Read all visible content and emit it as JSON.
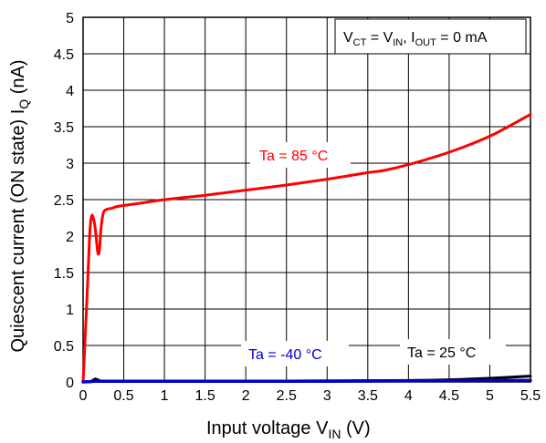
{
  "chart_data": {
    "type": "line",
    "xlabel": {
      "main": "Input voltage V",
      "sub": "IN",
      "unit": " (V)"
    },
    "ylabel": {
      "main": "Quiescent current (ON state) I",
      "sub": "Q",
      "unit": " (nA)"
    },
    "xlim": [
      0,
      5.5
    ],
    "ylim": [
      0,
      5
    ],
    "x_ticks": [
      "0",
      "0.5",
      "1",
      "1.5",
      "2",
      "2.5",
      "3",
      "3.5",
      "4",
      "4.5",
      "5",
      "5.5"
    ],
    "y_ticks": [
      "0",
      "0.5",
      "1",
      "1.5",
      "2",
      "2.5",
      "3",
      "3.5",
      "4",
      "4.5",
      "5"
    ],
    "grid": true,
    "condition": {
      "v1": "V",
      "v1_sub": "CT",
      "eq1": " = V",
      "v2_sub": "IN",
      "sep": ", I",
      "i_sub": "OUT",
      "rest": " = 0 mA"
    },
    "series": [
      {
        "name": "Ta = 85 °C",
        "color": "#ff0000",
        "x": [
          0,
          0.05,
          0.08,
          0.1,
          0.12,
          0.15,
          0.18,
          0.2,
          0.22,
          0.25,
          0.3,
          0.35,
          0.4,
          0.5,
          0.7,
          1.0,
          1.5,
          2.0,
          2.5,
          3.0,
          3.5,
          3.7,
          4.0,
          4.5,
          5.0,
          5.5
        ],
        "y": [
          0,
          1.2,
          2.0,
          2.25,
          2.27,
          2.1,
          1.78,
          1.8,
          2.1,
          2.32,
          2.37,
          2.38,
          2.4,
          2.42,
          2.45,
          2.5,
          2.56,
          2.63,
          2.7,
          2.78,
          2.87,
          2.9,
          2.98,
          3.15,
          3.37,
          3.67
        ]
      },
      {
        "name": "Ta = 25 °C",
        "color": "#000000",
        "x": [
          0,
          0.1,
          0.15,
          0.2,
          0.3,
          1.0,
          2.0,
          3.0,
          4.0,
          4.5,
          5.0,
          5.5
        ],
        "y": [
          0,
          0.01,
          0.04,
          0.02,
          0.01,
          0.01,
          0.01,
          0.015,
          0.02,
          0.03,
          0.05,
          0.08
        ]
      },
      {
        "name": "Ta = -40 °C",
        "color": "#0000cc",
        "x": [
          0,
          0.1,
          0.2,
          1.0,
          2.0,
          3.0,
          4.0,
          5.0,
          5.5
        ],
        "y": [
          0,
          0.005,
          0.01,
          0.01,
          0.01,
          0.01,
          0.015,
          0.02,
          0.02
        ]
      }
    ]
  }
}
